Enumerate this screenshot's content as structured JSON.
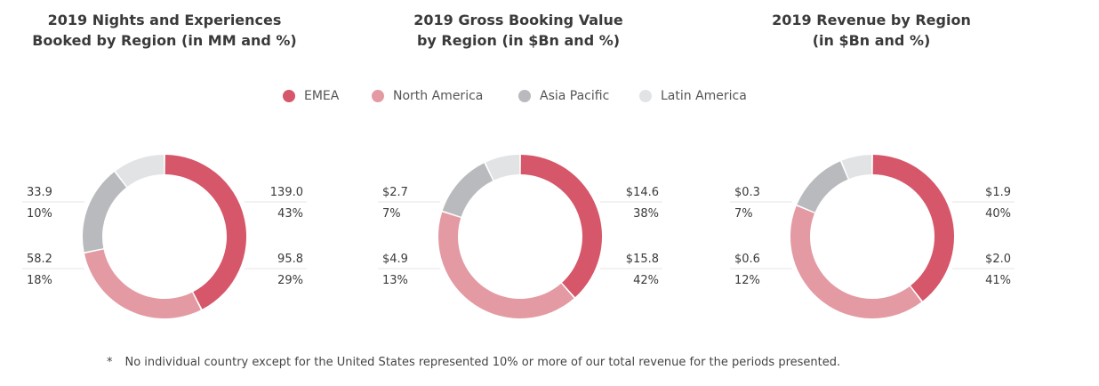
{
  "colors": {
    "EMEA": "#d6566a",
    "North America": "#e39aa2",
    "Asia Pacific": "#b9babd",
    "Latin America": "#e2e3e5"
  },
  "legend": [
    "EMEA",
    "North America",
    "Asia Pacific",
    "Latin America"
  ],
  "footnote": {
    "marker": "*",
    "text": "No individual country except for the United States represented 10% or more of our total revenue for the periods presented."
  },
  "chart_data": [
    {
      "type": "pie",
      "style": "donut",
      "title_lines": [
        "2019 Nights and Experiences",
        "Booked by Region (in MM and %)"
      ],
      "categories": [
        "EMEA",
        "North America",
        "Asia Pacific",
        "Latin America"
      ],
      "values": [
        139.0,
        95.8,
        58.2,
        33.9
      ],
      "value_labels": [
        "139.0",
        "95.8",
        "58.2",
        "33.9"
      ],
      "percent_labels": [
        "43%",
        "29%",
        "18%",
        "10%"
      ],
      "percents": [
        43,
        29,
        18,
        10
      ]
    },
    {
      "type": "pie",
      "style": "donut",
      "title_lines": [
        "2019 Gross Booking Value",
        "by Region (in $Bn and %)"
      ],
      "categories": [
        "EMEA",
        "North America",
        "Asia Pacific",
        "Latin America"
      ],
      "values": [
        14.6,
        15.8,
        4.9,
        2.7
      ],
      "value_labels": [
        "$14.6",
        "$15.8",
        "$4.9",
        "$2.7"
      ],
      "percent_labels": [
        "38%",
        "42%",
        "13%",
        "7%"
      ],
      "percents": [
        38,
        42,
        13,
        7
      ]
    },
    {
      "type": "pie",
      "style": "donut",
      "title_lines": [
        "2019 Revenue by Region",
        "(in $Bn and %)"
      ],
      "categories": [
        "EMEA",
        "North America",
        "Asia Pacific",
        "Latin America"
      ],
      "values": [
        1.9,
        2.0,
        0.6,
        0.3
      ],
      "value_labels": [
        "$1.9",
        "$2.0",
        "$0.6",
        "$0.3"
      ],
      "percent_labels": [
        "40%",
        "41%",
        "12%",
        "7%"
      ],
      "percents": [
        40,
        41,
        12,
        7
      ]
    }
  ]
}
